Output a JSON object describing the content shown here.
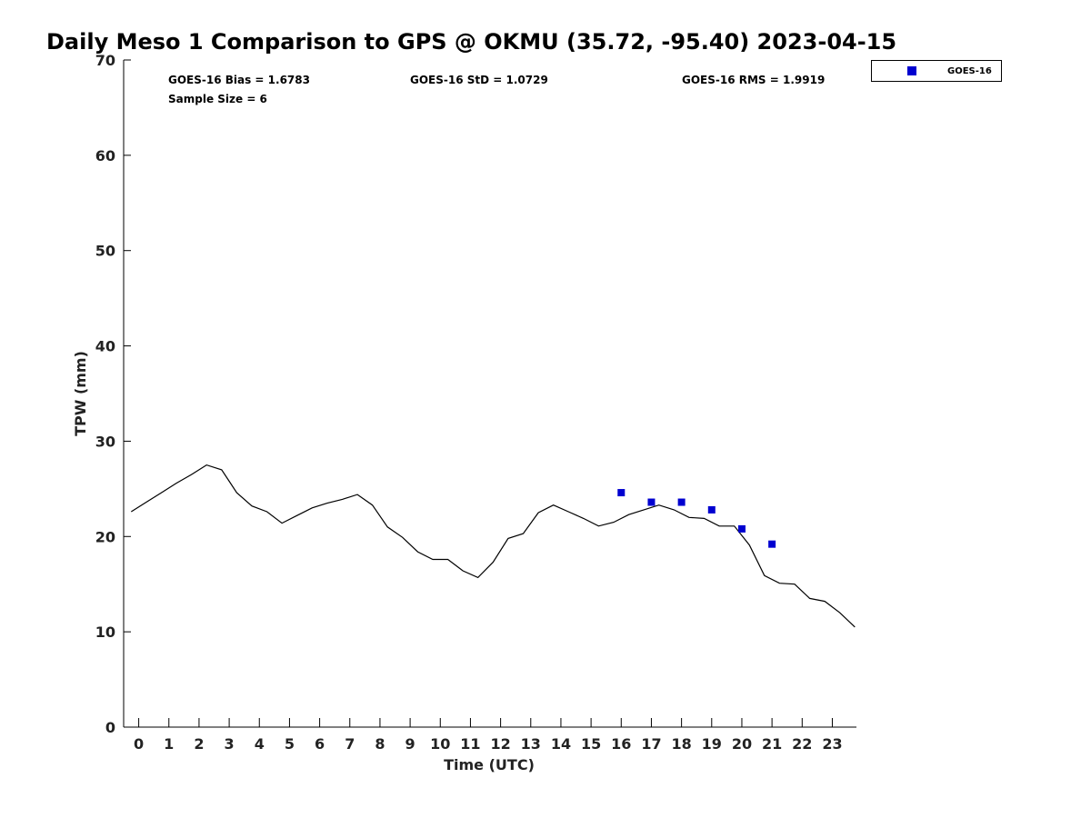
{
  "chart_data": {
    "type": "line",
    "title": "Daily Meso 1 Comparison to GPS @ OKMU (35.72, -95.40) 2023-04-15",
    "xlabel": "Time (UTC)",
    "ylabel": "TPW (mm)",
    "xlim": [
      -0.5,
      23.8
    ],
    "ylim": [
      0,
      70
    ],
    "x_ticks": [
      0,
      1,
      2,
      3,
      4,
      5,
      6,
      7,
      8,
      9,
      10,
      11,
      12,
      13,
      14,
      15,
      16,
      17,
      18,
      19,
      20,
      21,
      22,
      23
    ],
    "y_ticks": [
      0,
      10,
      20,
      30,
      40,
      50,
      60,
      70
    ],
    "grid": false,
    "legend_position": "top-right",
    "stats": {
      "bias": "GOES-16 Bias = 1.6783",
      "std": "GOES-16 StD = 1.0729",
      "rms": "GOES-16 RMS = 1.9919",
      "sample": "Sample Size = 6"
    },
    "series": [
      {
        "style": "line",
        "color": "#000000",
        "x": [
          -0.25,
          0.25,
          0.75,
          1.25,
          1.75,
          2.25,
          2.75,
          3.25,
          3.75,
          4.25,
          4.75,
          5.25,
          5.75,
          6.25,
          6.75,
          7.25,
          7.75,
          8.25,
          8.75,
          9.25,
          9.75,
          10.25,
          10.75,
          11.25,
          11.75,
          12.25,
          12.75,
          13.25,
          13.75,
          14.25,
          14.75,
          15.25,
          15.75,
          16.25,
          16.75,
          17.25,
          17.75,
          18.25,
          18.75,
          19.25,
          19.75,
          20.25,
          20.75,
          21.25,
          21.75,
          22.25,
          22.75,
          23.25,
          23.75
        ],
        "y": [
          22.6,
          23.6,
          24.6,
          25.6,
          26.5,
          27.5,
          27.0,
          24.6,
          23.2,
          22.6,
          21.4,
          22.2,
          23.0,
          23.5,
          23.9,
          24.4,
          23.3,
          21.0,
          19.9,
          18.4,
          17.6,
          17.6,
          16.4,
          15.7,
          17.3,
          19.8,
          20.3,
          22.5,
          23.3,
          22.6,
          21.9,
          21.1,
          21.5,
          22.3,
          22.8,
          23.3,
          22.8,
          22.0,
          21.9,
          21.1,
          21.1,
          19.1,
          15.9,
          15.1,
          15.0,
          13.5,
          13.2,
          12.0,
          10.5
        ]
      },
      {
        "name": "GOES-16",
        "style": "marker",
        "marker": "square",
        "color": "#0000d0",
        "x": [
          16,
          17,
          18,
          19,
          20,
          21
        ],
        "y": [
          24.6,
          23.6,
          23.6,
          22.8,
          20.8,
          19.2
        ]
      }
    ]
  }
}
